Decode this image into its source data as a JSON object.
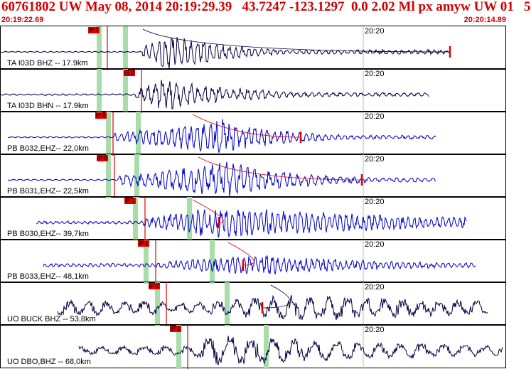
{
  "header": {
    "title": "60761802 UW May 08, 2014 20:19:29.39   43.7247 -123.1297  0.0 2.02 Ml px amyw UW 01   5",
    "start_time": "20:19:22.69",
    "end_time": "20:20:14.89"
  },
  "colors": {
    "title": "#d00000",
    "trace_black": "#000040",
    "trace_blue": "#0000cc",
    "pick_red": "#e00000",
    "window_green": "#a8dca8"
  },
  "traces": [
    {
      "label": "TA I03D BHZ -- 17.9km",
      "tick": "20:20",
      "color": "black",
      "pick": "iP 1",
      "pickX": 150,
      "pickFlag": 123,
      "greens": [
        135,
        172
      ],
      "start": 0,
      "end": 632,
      "amp": 26,
      "period": 9,
      "onset": 200,
      "peak": 240,
      "decay": 80,
      "noise": 0.8,
      "mark": 632,
      "decayCurve": true
    },
    {
      "label": "TA I03D BHN -- 17.9km",
      "tick": "20:20",
      "color": "black",
      "pick": "iS 2",
      "pickX": 198,
      "pickFlag": 173,
      "greens": [
        135,
        172
      ],
      "start": 0,
      "end": 602,
      "amp": 22,
      "period": 10,
      "onset": 190,
      "peak": 228,
      "decay": 110,
      "noise": 1.2
    },
    {
      "label": "PB B032,EHZ-- 22,0km",
      "tick": "20:20",
      "color": "blue",
      "pick": "iP 0",
      "pickX": 158,
      "pickFlag": 133,
      "greens": [
        148,
        190
      ],
      "start": 10,
      "end": 612,
      "amp": 24,
      "period": 9,
      "onset": 160,
      "peak": 310,
      "decay": 90,
      "noise": 1.0,
      "mark": 422,
      "decayCurve": true
    },
    {
      "label": "PB B031,EHZ-- 22,5km",
      "tick": "20:20",
      "color": "blue",
      "pick": "iP 0",
      "pickX": 160,
      "pickFlag": 135,
      "greens": [
        148,
        188
      ],
      "start": 10,
      "end": 612,
      "amp": 24,
      "period": 10,
      "onset": 165,
      "peak": 318,
      "decay": 110,
      "noise": 1.0,
      "mark": 508,
      "decayCurve": true
    },
    {
      "label": "PB B030,EHZ-- 39,7km",
      "tick": "20:20",
      "color": "blue",
      "pick": "iP 1",
      "pickX": 203,
      "pickFlag": 174,
      "greens": [
        186,
        262
      ],
      "start": 50,
      "end": 655,
      "amp": 22,
      "period": 8,
      "onset": 200,
      "peak": 310,
      "decay": 300,
      "noise": 2.0,
      "mark": 307,
      "decayCurve": true
    },
    {
      "label": "PB B033,EHZ-- 48,1km",
      "tick": "20:20",
      "color": "blue",
      "pick": "iP 1",
      "pickX": 218,
      "pickFlag": 193,
      "greens": [
        201,
        294
      ],
      "start": 60,
      "end": 668,
      "amp": 14,
      "period": 8,
      "onset": 215,
      "peak": 360,
      "decay": 200,
      "noise": 2.5,
      "mark": 341,
      "decayCurve": true
    },
    {
      "label": "UO BUCK BHZ -- 53,8km",
      "tick": "20:20",
      "color": "black",
      "pick": "iP 2",
      "pickX": 233,
      "pickFlag": 208,
      "greens": [
        217,
        315
      ],
      "start": 80,
      "end": 685,
      "amp": 18,
      "period": 26,
      "onset": 232,
      "peak": 420,
      "decay": 400,
      "noise": 10,
      "mark": 368,
      "decayCurve": true
    },
    {
      "label": "UO DBO,BHZ -- 68,0km",
      "tick": "20:20",
      "color": "black",
      "pick": "iP 1",
      "pickX": 263,
      "pickFlag": 238,
      "greens": [
        247,
        370
      ],
      "start": 110,
      "end": 706,
      "amp": 20,
      "period": 30,
      "onset": 262,
      "peak": 300,
      "decay": 400,
      "noise": 6
    }
  ]
}
